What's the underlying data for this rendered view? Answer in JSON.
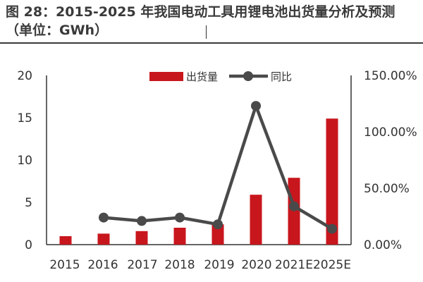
{
  "title": "图 28：2015-2025 年我国电动工具用锂电池出货量分析及预测（单位：GWh）",
  "chart_data": {
    "type": "bar",
    "categories": [
      "2015",
      "2016",
      "2017",
      "2018",
      "2019",
      "2020",
      "2021E",
      "2025E"
    ],
    "series": [
      {
        "name": "出货量",
        "type": "bar",
        "axis": "left",
        "color": "#c8161d",
        "values": [
          1.0,
          1.3,
          1.6,
          2.0,
          2.4,
          5.9,
          7.9,
          14.9
        ]
      },
      {
        "name": "同比",
        "type": "line",
        "axis": "right",
        "color": "#4a4a4a",
        "values": [
          null,
          24.0,
          21.0,
          24.0,
          18.0,
          123.0,
          34.0,
          14.0
        ]
      }
    ],
    "y_left": {
      "ylim": [
        0,
        20
      ],
      "ticks": [
        "0",
        "5",
        "10",
        "15",
        "20"
      ],
      "tick_values": [
        0,
        5,
        10,
        15,
        20
      ]
    },
    "y_right": {
      "ylim": [
        0,
        150
      ],
      "ticks": [
        "0.00%",
        "50.00%",
        "100.00%",
        "150.00%"
      ],
      "tick_values": [
        0,
        50,
        100,
        150
      ]
    },
    "legend": {
      "position": "top-center",
      "items": [
        "出货量",
        "同比"
      ]
    }
  }
}
